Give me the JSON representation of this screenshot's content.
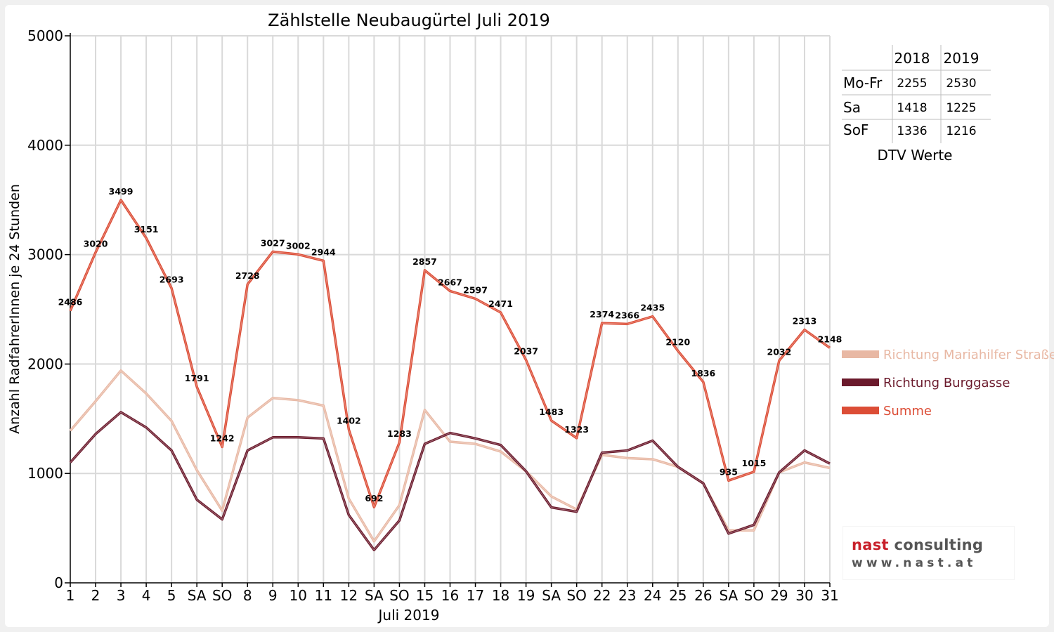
{
  "chart_data": {
    "type": "line",
    "title": "Zählstelle Neubaugürtel Juli 2019",
    "xlabel": "Juli 2019",
    "ylabel": "Anzahl RadfahrerInnen je 24 Stunden",
    "ylim": [
      0,
      5000
    ],
    "yticks": [
      "0",
      "1000",
      "2000",
      "3000",
      "4000",
      "5000"
    ],
    "grid": true,
    "legend_position": "right",
    "categories": [
      "1",
      "2",
      "3",
      "4",
      "5",
      "SA",
      "SO",
      "8",
      "9",
      "10",
      "11",
      "12",
      "SA",
      "SO",
      "15",
      "16",
      "17",
      "18",
      "19",
      "SA",
      "SO",
      "22",
      "23",
      "24",
      "25",
      "26",
      "SA",
      "SO",
      "29",
      "30",
      "31"
    ],
    "weekend_sunday_labels_red": true,
    "series": [
      {
        "name": "Richtung Mariahilfer Straße",
        "color": "#e8b8a4",
        "values": [
          1390,
          1660,
          1940,
          1730,
          1480,
          1030,
          660,
          1510,
          1690,
          1670,
          1620,
          770,
          380,
          710,
          1580,
          1290,
          1270,
          1200,
          1020,
          790,
          670,
          1170,
          1140,
          1130,
          1060,
          910,
          480,
          480,
          1010,
          1100,
          1050
        ]
      },
      {
        "name": "Richtung Burggasse",
        "color": "#6b1a2c",
        "values": [
          1100,
          1360,
          1560,
          1420,
          1210,
          760,
          580,
          1210,
          1330,
          1330,
          1320,
          620,
          300,
          570,
          1270,
          1370,
          1320,
          1260,
          1020,
          690,
          650,
          1190,
          1210,
          1300,
          1060,
          910,
          450,
          530,
          1010,
          1210,
          1090
        ]
      },
      {
        "name": "Summe",
        "color": "#dc4d36",
        "values": [
          2486,
          3020,
          3499,
          3151,
          2693,
          1791,
          1242,
          2728,
          3027,
          3002,
          2944,
          1402,
          692,
          1283,
          2857,
          2667,
          2597,
          2471,
          2037,
          1483,
          1323,
          2374,
          2366,
          2435,
          2120,
          1836,
          935,
          1015,
          2032,
          2313,
          2148
        ]
      }
    ],
    "data_labels": [
      "2486",
      "3020",
      "3499",
      "3151",
      "2693",
      "1791",
      "1242",
      "2728",
      "3027",
      "3002",
      "2944",
      "1402",
      "692",
      "1283",
      "2857",
      "2667",
      "2597",
      "2471",
      "2037",
      "1483",
      "1323",
      "2374",
      "2366",
      "2435",
      "2120",
      "1836",
      "935",
      "1015",
      "2032",
      "2313",
      "2148"
    ]
  },
  "dtv_table": {
    "caption": "DTV Werte",
    "columns": [
      "2018",
      "2019"
    ],
    "rows": [
      {
        "label": "Mo-Fr",
        "v2018": "2255",
        "v2019": "2530"
      },
      {
        "label": "Sa",
        "v2018": "1418",
        "v2019": "1225"
      },
      {
        "label": "SoF",
        "v2018": "1336",
        "v2019": "1216"
      }
    ]
  },
  "logo": {
    "line1_a": "nast",
    "line1_b": " consulting",
    "line2": "www.nast.at"
  }
}
